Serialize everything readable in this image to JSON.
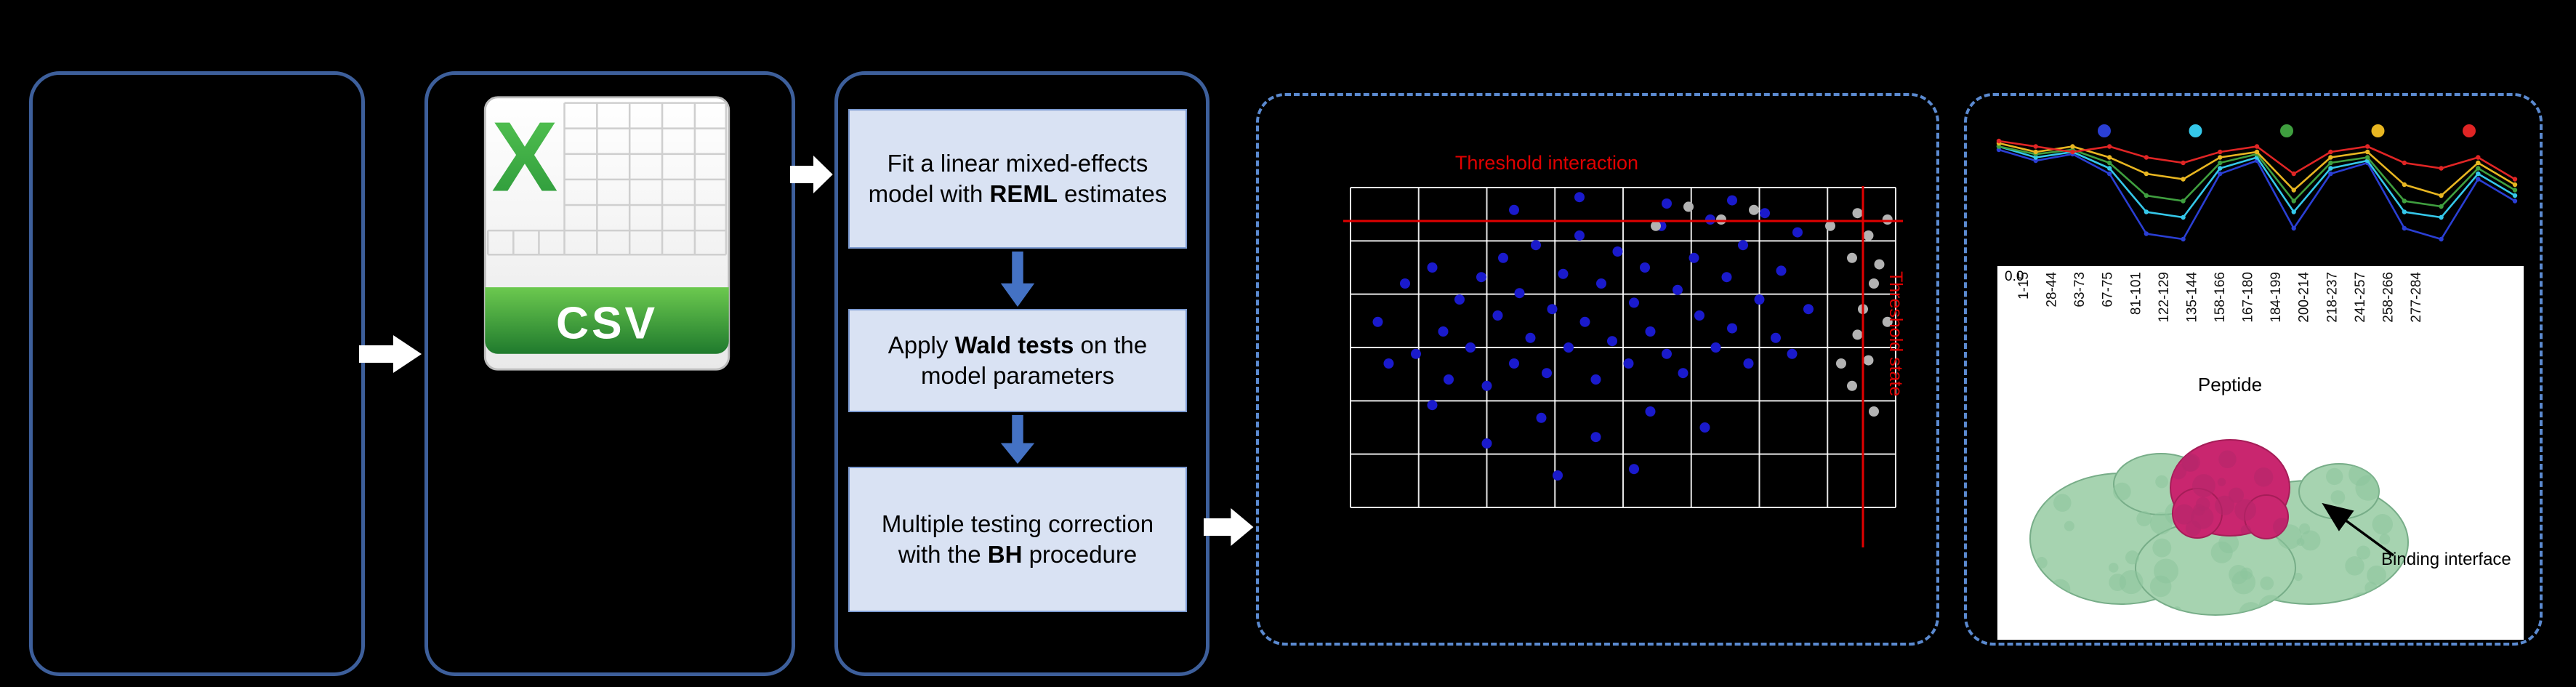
{
  "figure": {
    "csv_icon": {
      "letter": "X",
      "label": "CSV"
    },
    "steps": [
      {
        "pre": "Fit a linear mixed-effects model with ",
        "bold": "REML",
        "post": " estimates"
      },
      {
        "pre": "Apply ",
        "bold": "Wald tests",
        "post": " on the model parameters"
      },
      {
        "pre": "Multiple testing correction with the ",
        "bold": "BH",
        "post": " procedure"
      }
    ],
    "annotation": "Binding interface"
  },
  "colors": {
    "background": "#000000",
    "box_border": "#3d5f9b",
    "dashed_border": "#5b8ad0",
    "step_fill": "#d9e2f3",
    "flow_arrow": "#ffffff",
    "down_arrow": "#4472c4",
    "threshold_red": "#e00000",
    "csv_green": "#3fae49",
    "significant_blue": "#1a1acc",
    "nonsignificant_gray": "#b3b3b3",
    "protein_green": "#a6d3b0",
    "binding_magenta": "#c9266f"
  },
  "chart_data": [
    {
      "type": "scatter",
      "title": "Threshold interaction",
      "right_label": "Threshold state",
      "grid": true,
      "thresholds": {
        "horizontal_frac": 0.105,
        "vertical_frac": 0.94
      },
      "series": [
        {
          "name": "significant-peptides",
          "color": "#1a1acc",
          "points": [
            [
              0.05,
              0.42
            ],
            [
              0.07,
              0.55
            ],
            [
              0.1,
              0.3
            ],
            [
              0.12,
              0.52
            ],
            [
              0.15,
              0.25
            ],
            [
              0.15,
              0.68
            ],
            [
              0.17,
              0.45
            ],
            [
              0.18,
              0.6
            ],
            [
              0.2,
              0.35
            ],
            [
              0.22,
              0.5
            ],
            [
              0.24,
              0.28
            ],
            [
              0.25,
              0.62
            ],
            [
              0.25,
              0.8
            ],
            [
              0.27,
              0.4
            ],
            [
              0.28,
              0.22
            ],
            [
              0.3,
              0.07
            ],
            [
              0.3,
              0.55
            ],
            [
              0.31,
              0.33
            ],
            [
              0.33,
              0.47
            ],
            [
              0.34,
              0.18
            ],
            [
              0.35,
              0.72
            ],
            [
              0.36,
              0.58
            ],
            [
              0.37,
              0.38
            ],
            [
              0.38,
              0.9
            ],
            [
              0.39,
              0.27
            ],
            [
              0.4,
              0.5
            ],
            [
              0.42,
              0.03
            ],
            [
              0.42,
              0.15
            ],
            [
              0.43,
              0.42
            ],
            [
              0.45,
              0.6
            ],
            [
              0.45,
              0.78
            ],
            [
              0.46,
              0.3
            ],
            [
              0.48,
              0.48
            ],
            [
              0.49,
              0.2
            ],
            [
              0.51,
              0.55
            ],
            [
              0.52,
              0.36
            ],
            [
              0.52,
              0.88
            ],
            [
              0.54,
              0.25
            ],
            [
              0.55,
              0.45
            ],
            [
              0.55,
              0.7
            ],
            [
              0.57,
              0.12
            ],
            [
              0.58,
              0.05
            ],
            [
              0.58,
              0.52
            ],
            [
              0.6,
              0.32
            ],
            [
              0.61,
              0.58
            ],
            [
              0.63,
              0.22
            ],
            [
              0.64,
              0.4
            ],
            [
              0.65,
              0.75
            ],
            [
              0.66,
              0.1
            ],
            [
              0.67,
              0.5
            ],
            [
              0.69,
              0.28
            ],
            [
              0.7,
              0.04
            ],
            [
              0.7,
              0.44
            ],
            [
              0.72,
              0.18
            ],
            [
              0.73,
              0.55
            ],
            [
              0.75,
              0.35
            ],
            [
              0.76,
              0.08
            ],
            [
              0.78,
              0.47
            ],
            [
              0.79,
              0.26
            ],
            [
              0.81,
              0.52
            ],
            [
              0.82,
              0.14
            ],
            [
              0.84,
              0.38
            ]
          ]
        },
        {
          "name": "non-significant-peptides",
          "color": "#b3b3b3",
          "points": [
            [
              0.56,
              0.12
            ],
            [
              0.62,
              0.06
            ],
            [
              0.68,
              0.1
            ],
            [
              0.74,
              0.07
            ],
            [
              0.88,
              0.12
            ],
            [
              0.9,
              0.55
            ],
            [
              0.92,
              0.22
            ],
            [
              0.92,
              0.62
            ],
            [
              0.93,
              0.08
            ],
            [
              0.93,
              0.46
            ],
            [
              0.94,
              0.38
            ],
            [
              0.95,
              0.15
            ],
            [
              0.95,
              0.54
            ],
            [
              0.96,
              0.3
            ],
            [
              0.96,
              0.7
            ],
            [
              0.97,
              0.24
            ],
            [
              0.985,
              0.1
            ],
            [
              0.985,
              0.42
            ]
          ]
        }
      ]
    },
    {
      "type": "line",
      "title": "",
      "xlabel": "Peptide",
      "ytick": "0.0",
      "ylim": [
        -1,
        0.1
      ],
      "categories": [
        "1-15",
        "28-44",
        "63-73",
        "67-75",
        "81-101",
        "122-129",
        "135-144",
        "158-166",
        "167-180",
        "184-199",
        "200-214",
        "218-237",
        "241-257",
        "258-266",
        "277-284"
      ],
      "legend_colors": [
        "#2a3fd4",
        "#35c8ea",
        "#3f9f3f",
        "#e8b621",
        "#e02525"
      ],
      "series": [
        {
          "name": "series-1",
          "color": "#2a3fd4",
          "values": [
            -0.08,
            -0.18,
            -0.12,
            -0.3,
            -0.85,
            -0.9,
            -0.3,
            -0.18,
            -0.8,
            -0.3,
            -0.2,
            -0.8,
            -0.9,
            -0.35,
            -0.55
          ]
        },
        {
          "name": "series-2",
          "color": "#35c8ea",
          "values": [
            -0.05,
            -0.15,
            -0.1,
            -0.25,
            -0.65,
            -0.7,
            -0.25,
            -0.15,
            -0.65,
            -0.25,
            -0.18,
            -0.65,
            -0.7,
            -0.3,
            -0.5
          ]
        },
        {
          "name": "series-3",
          "color": "#3f9f3f",
          "values": [
            -0.05,
            -0.12,
            -0.08,
            -0.2,
            -0.5,
            -0.55,
            -0.2,
            -0.12,
            -0.55,
            -0.2,
            -0.15,
            -0.55,
            -0.6,
            -0.25,
            -0.45
          ]
        },
        {
          "name": "series-4",
          "color": "#e8b621",
          "values": [
            -0.02,
            -0.1,
            -0.05,
            -0.15,
            -0.3,
            -0.35,
            -0.15,
            -0.1,
            -0.45,
            -0.15,
            -0.1,
            -0.4,
            -0.5,
            -0.2,
            -0.4
          ]
        },
        {
          "name": "series-5",
          "color": "#e02525",
          "values": [
            0.0,
            -0.05,
            -0.1,
            -0.05,
            -0.15,
            -0.2,
            -0.1,
            -0.05,
            -0.3,
            -0.1,
            -0.05,
            -0.2,
            -0.25,
            -0.15,
            -0.35
          ]
        }
      ]
    }
  ]
}
